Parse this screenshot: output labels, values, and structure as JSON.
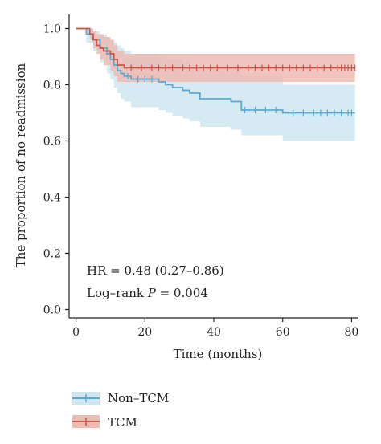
{
  "chart_data": {
    "type": "line",
    "subtype": "kaplan-meier",
    "xlabel": "Time (months)",
    "ylabel": "The proportion of no readmission",
    "xlim": [
      -2,
      82
    ],
    "ylim": [
      -0.03,
      1.05
    ],
    "xticks": [
      0,
      20,
      40,
      60,
      80
    ],
    "yticks": [
      0.0,
      0.2,
      0.4,
      0.6,
      0.8,
      1.0
    ],
    "ytick_labels": [
      "0.0",
      "0.2",
      "0.4",
      "0.6",
      "0.8",
      "1.0"
    ],
    "annotations": {
      "hr": "HR = 0.48 (0.27–0.86)",
      "logrank_prefix": "Log–rank ",
      "logrank_p": "P",
      "logrank_suffix": " = 0.004"
    },
    "legend_position": "bottom-left",
    "series": [
      {
        "name": "Non–TCM",
        "color": "#5aa9d2",
        "band_color": "#cfe6f1",
        "steps": [
          [
            0,
            1.0
          ],
          [
            3,
            0.98
          ],
          [
            5,
            0.96
          ],
          [
            7,
            0.93
          ],
          [
            9,
            0.91
          ],
          [
            10,
            0.89
          ],
          [
            11,
            0.87
          ],
          [
            12,
            0.85
          ],
          [
            13,
            0.84
          ],
          [
            14,
            0.83
          ],
          [
            16,
            0.82
          ],
          [
            24,
            0.81
          ],
          [
            26,
            0.8
          ],
          [
            28,
            0.79
          ],
          [
            31,
            0.78
          ],
          [
            33,
            0.77
          ],
          [
            36,
            0.75
          ],
          [
            45,
            0.74
          ],
          [
            48,
            0.71
          ],
          [
            60,
            0.7
          ],
          [
            81,
            0.7
          ]
        ],
        "lower": [
          [
            0,
            1.0
          ],
          [
            3,
            0.95
          ],
          [
            5,
            0.92
          ],
          [
            7,
            0.88
          ],
          [
            9,
            0.84
          ],
          [
            10,
            0.82
          ],
          [
            11,
            0.79
          ],
          [
            12,
            0.77
          ],
          [
            13,
            0.75
          ],
          [
            14,
            0.74
          ],
          [
            16,
            0.72
          ],
          [
            24,
            0.71
          ],
          [
            26,
            0.7
          ],
          [
            28,
            0.69
          ],
          [
            31,
            0.68
          ],
          [
            33,
            0.67
          ],
          [
            36,
            0.65
          ],
          [
            45,
            0.64
          ],
          [
            48,
            0.62
          ],
          [
            60,
            0.6
          ],
          [
            81,
            0.6
          ]
        ],
        "upper": [
          [
            0,
            1.0
          ],
          [
            3,
            1.0
          ],
          [
            5,
            0.99
          ],
          [
            7,
            0.98
          ],
          [
            9,
            0.97
          ],
          [
            10,
            0.96
          ],
          [
            11,
            0.95
          ],
          [
            12,
            0.94
          ],
          [
            13,
            0.93
          ],
          [
            14,
            0.92
          ],
          [
            16,
            0.91
          ],
          [
            24,
            0.9
          ],
          [
            26,
            0.89
          ],
          [
            28,
            0.89
          ],
          [
            31,
            0.88
          ],
          [
            33,
            0.87
          ],
          [
            36,
            0.86
          ],
          [
            45,
            0.86
          ],
          [
            48,
            0.83
          ],
          [
            60,
            0.8
          ],
          [
            81,
            0.8
          ]
        ],
        "censor_x": [
          15,
          18,
          20,
          22,
          49,
          52,
          55,
          58,
          63,
          66,
          69,
          71,
          73,
          75,
          77,
          79,
          80
        ]
      },
      {
        "name": "TCM",
        "color": "#c9574a",
        "band_color": "#ecbbb3",
        "steps": [
          [
            0,
            1.0
          ],
          [
            4,
            0.98
          ],
          [
            5,
            0.96
          ],
          [
            6,
            0.94
          ],
          [
            7,
            0.93
          ],
          [
            8,
            0.92
          ],
          [
            10,
            0.91
          ],
          [
            11,
            0.89
          ],
          [
            12,
            0.87
          ],
          [
            14,
            0.86
          ],
          [
            81,
            0.86
          ]
        ],
        "lower": [
          [
            0,
            1.0
          ],
          [
            4,
            0.96
          ],
          [
            5,
            0.93
          ],
          [
            6,
            0.91
          ],
          [
            7,
            0.89
          ],
          [
            8,
            0.87
          ],
          [
            10,
            0.85
          ],
          [
            11,
            0.83
          ],
          [
            12,
            0.81
          ],
          [
            14,
            0.81
          ],
          [
            81,
            0.81
          ]
        ],
        "upper": [
          [
            0,
            1.0
          ],
          [
            4,
            1.0
          ],
          [
            5,
            0.99
          ],
          [
            6,
            0.98
          ],
          [
            7,
            0.98
          ],
          [
            8,
            0.97
          ],
          [
            10,
            0.96
          ],
          [
            11,
            0.94
          ],
          [
            12,
            0.92
          ],
          [
            14,
            0.91
          ],
          [
            81,
            0.91
          ]
        ],
        "censor_x": [
          16,
          19,
          22,
          24,
          26,
          28,
          31,
          33,
          35,
          37,
          39,
          41,
          44,
          47,
          50,
          52,
          54,
          56,
          58,
          60,
          62,
          64,
          66,
          68,
          70,
          72,
          74,
          76,
          77,
          78,
          79,
          80,
          81
        ]
      }
    ]
  }
}
